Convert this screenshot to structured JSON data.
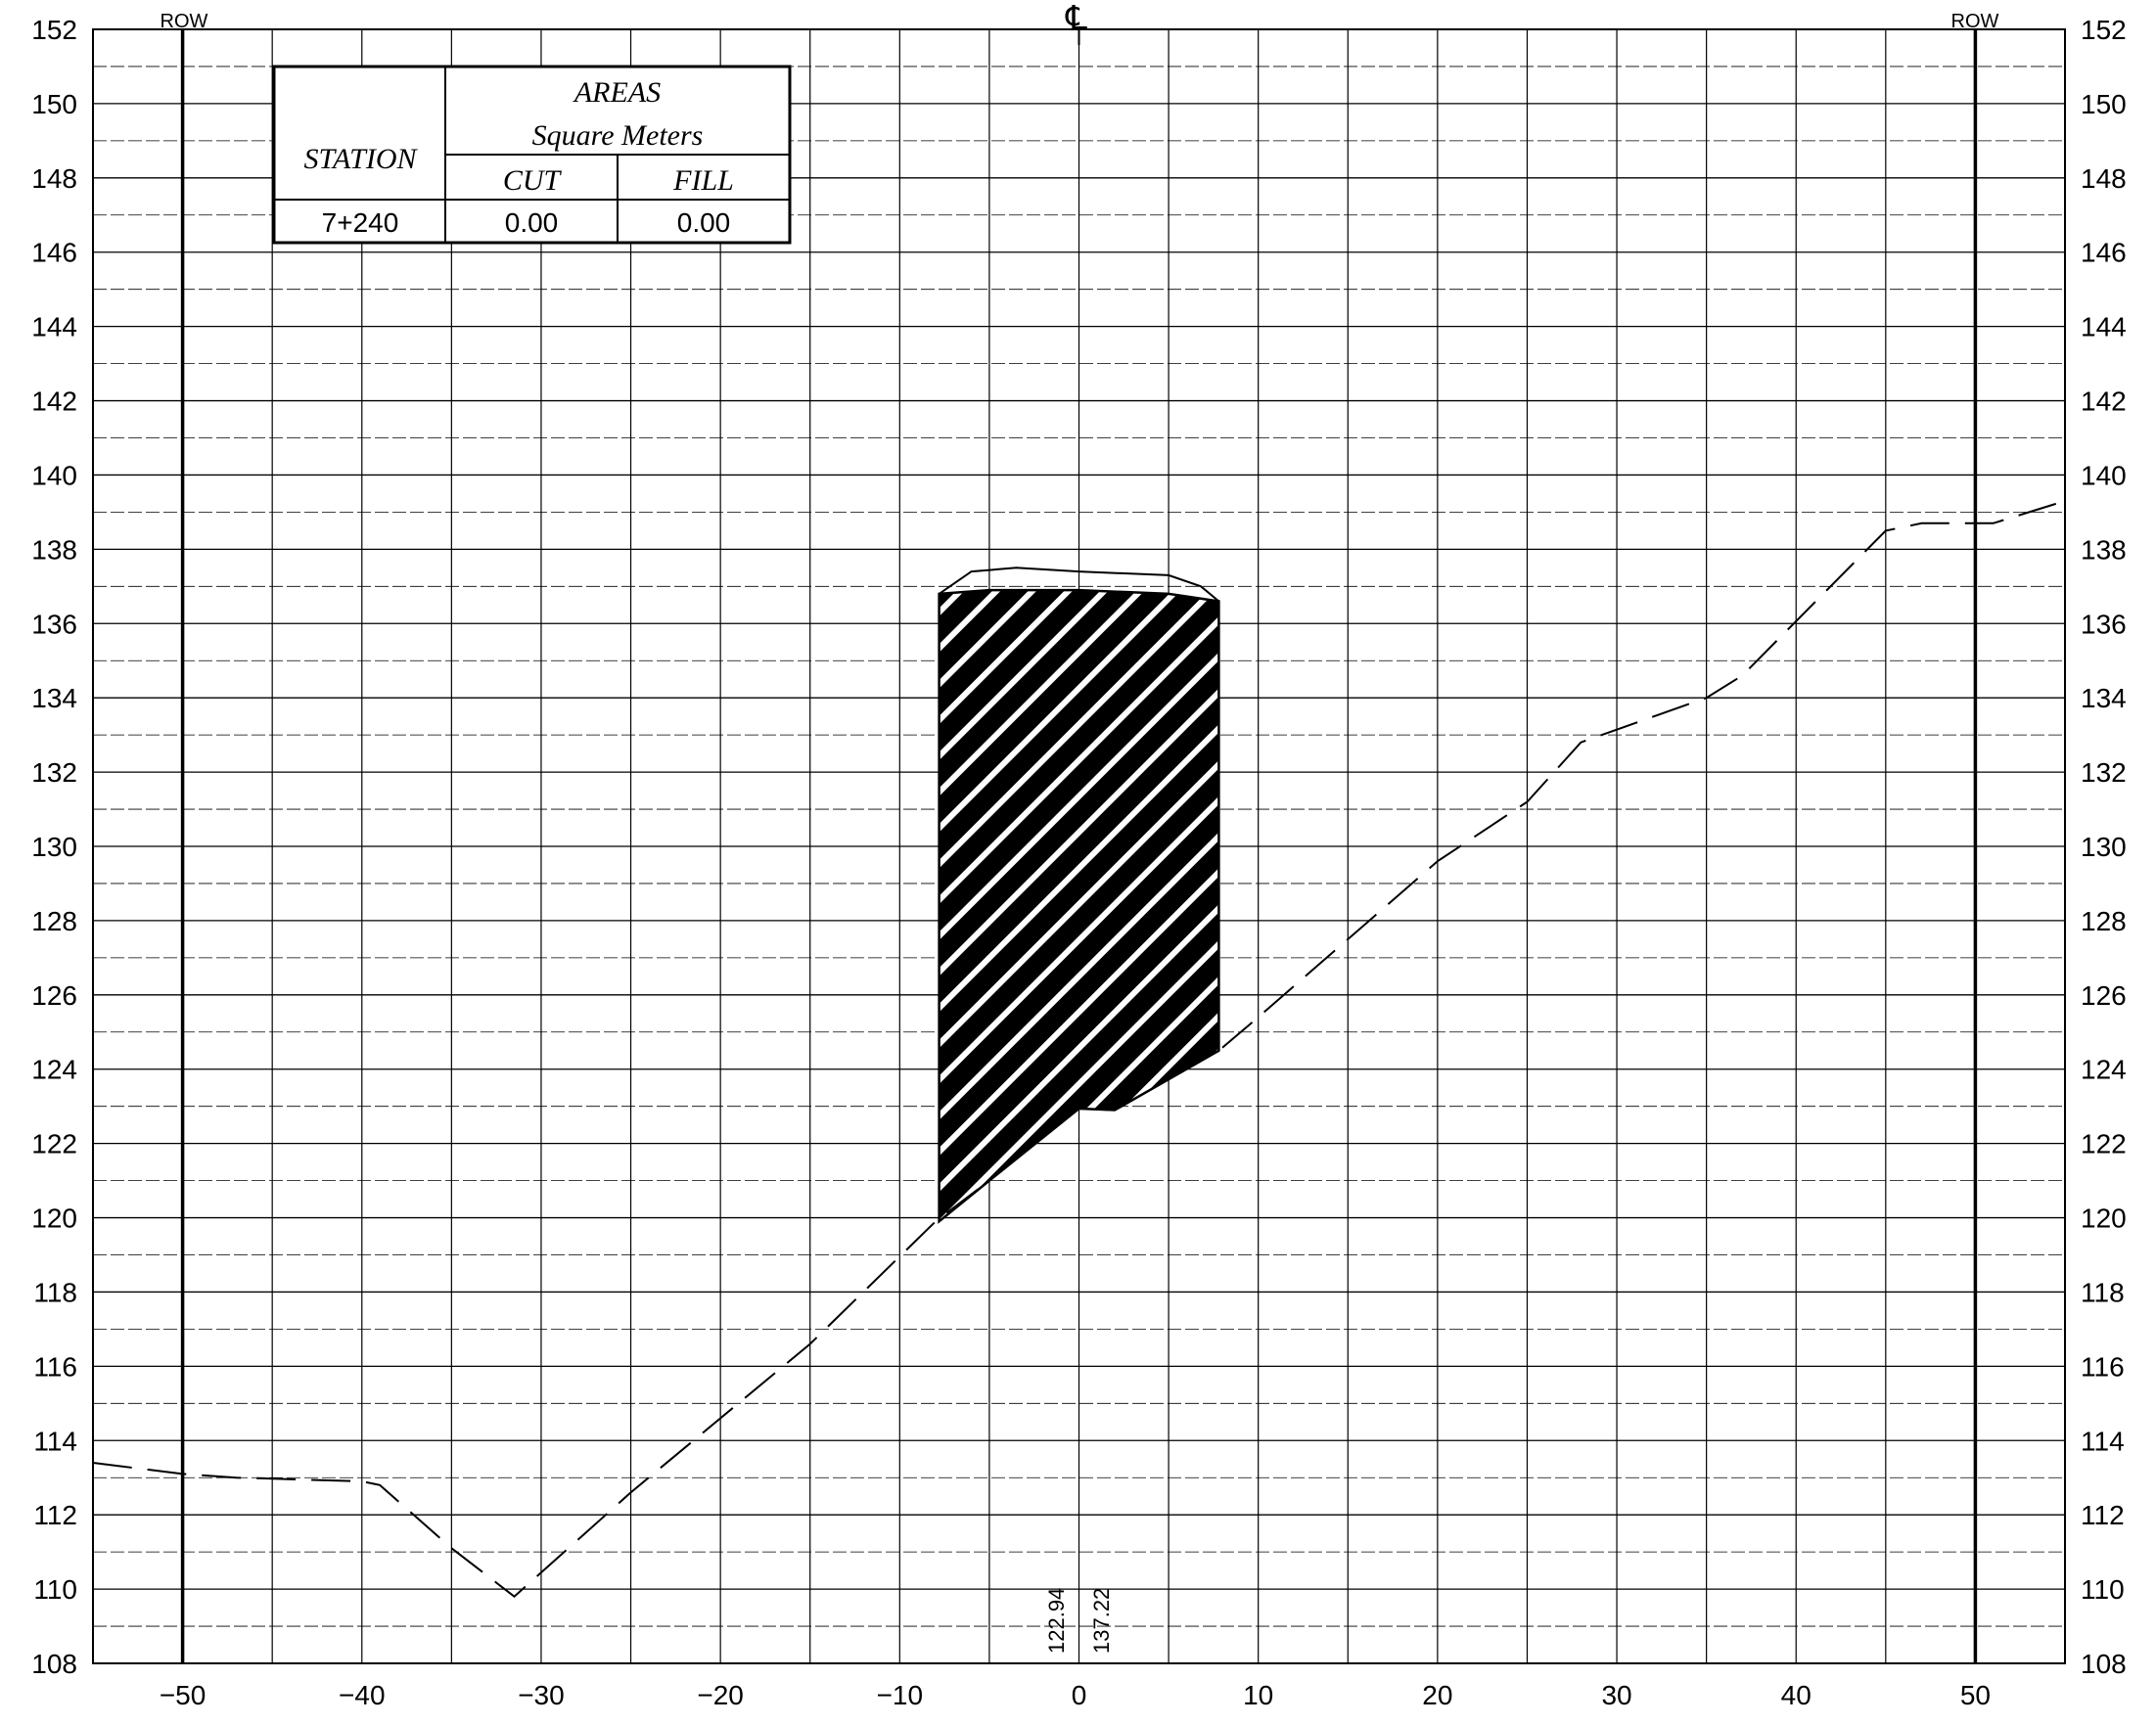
{
  "centerline_label": "℄",
  "row_label_left": "ROW",
  "row_label_right": "ROW",
  "table": {
    "station_header": "STATION",
    "areas_header": "AREAS",
    "units_header": "Square Meters",
    "cut_header": "CUT",
    "fill_header": "FILL",
    "station": "7+240",
    "cut": "0.00",
    "fill": "0.00"
  },
  "elevation_left": "122.94",
  "elevation_right": "137.22",
  "colors": {
    "line": "#000000",
    "background": "#ffffff",
    "hatch": "#000000"
  },
  "chart_data": {
    "type": "line",
    "xlim": [
      -55,
      55
    ],
    "ylim": [
      108,
      152
    ],
    "x_ticks": [
      -50,
      -40,
      -30,
      -20,
      -10,
      0,
      10,
      20,
      30,
      40,
      50
    ],
    "x_tick_labels": [
      "−50",
      "−40",
      "−30",
      "−20",
      "−10",
      "0",
      "10",
      "20",
      "30",
      "40",
      "50"
    ],
    "y_ticks": [
      108,
      110,
      112,
      114,
      116,
      118,
      120,
      122,
      124,
      126,
      128,
      130,
      132,
      134,
      136,
      138,
      140,
      142,
      144,
      146,
      148,
      150,
      152
    ],
    "y_tick_labels": [
      "108",
      "110",
      "112",
      "114",
      "116",
      "118",
      "120",
      "122",
      "124",
      "126",
      "128",
      "130",
      "132",
      "134",
      "136",
      "138",
      "140",
      "142",
      "144",
      "146",
      "148",
      "150",
      "152"
    ],
    "row_lines_x": [
      -50,
      50
    ],
    "grid": true,
    "series": [
      {
        "style": "dashed",
        "points": [
          [
            -55,
            113.4
          ],
          [
            -50,
            113.1
          ],
          [
            -47,
            113.0
          ],
          [
            -40,
            112.9
          ],
          [
            -39,
            112.8
          ],
          [
            -35,
            111.1
          ],
          [
            -31.5,
            109.8
          ],
          [
            -25,
            112.6
          ],
          [
            -15,
            116.6
          ],
          [
            -8,
            119.9
          ],
          [
            -5,
            121.0
          ],
          [
            0,
            122.94
          ],
          [
            2,
            122.9
          ],
          [
            7.8,
            124.5
          ],
          [
            10,
            125.4
          ],
          [
            15,
            127.5
          ],
          [
            20,
            129.6
          ],
          [
            25,
            131.2
          ],
          [
            28,
            132.8
          ],
          [
            35,
            134.0
          ],
          [
            37,
            134.6
          ],
          [
            45,
            138.5
          ],
          [
            47,
            138.7
          ],
          [
            51,
            138.7
          ],
          [
            55,
            139.3
          ]
        ]
      }
    ],
    "hatched_region": [
      [
        -7.8,
        136.8
      ],
      [
        -5,
        136.9
      ],
      [
        0,
        136.9
      ],
      [
        5,
        136.8
      ],
      [
        7.8,
        136.6
      ],
      [
        7.8,
        124.5
      ],
      [
        2,
        122.9
      ],
      [
        0,
        122.94
      ],
      [
        -5,
        121.0
      ],
      [
        -7.8,
        119.9
      ]
    ],
    "top_outline": [
      [
        -7.8,
        136.8
      ],
      [
        -6,
        137.4
      ],
      [
        -3.5,
        137.5
      ],
      [
        0,
        137.4
      ],
      [
        5,
        137.3
      ],
      [
        6.8,
        137.0
      ],
      [
        7.8,
        136.6
      ]
    ]
  }
}
